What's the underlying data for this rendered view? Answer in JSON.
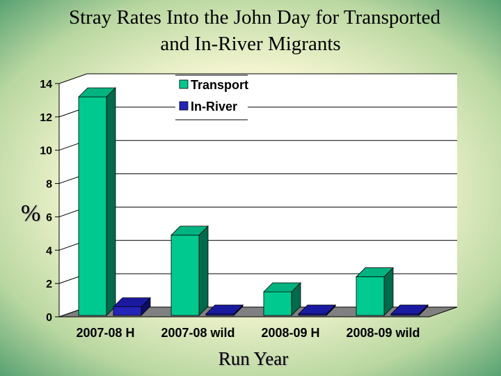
{
  "chart_data": {
    "type": "bar",
    "title_line1": "Stray Rates Into the John Day for Transported",
    "title_line2": "and In-River Migrants",
    "xlabel": "Run Year",
    "ylabel": "%",
    "categories": [
      "2007-08 H",
      "2007-08 wild",
      "2008-09 H",
      "2008-09 wild"
    ],
    "series": [
      {
        "name": "Transport",
        "values": [
          13.2,
          4.9,
          1.5,
          2.4
        ],
        "color": "#00c98f",
        "top": "#00b380",
        "side": "#006b4c"
      },
      {
        "name": "In-River",
        "values": [
          0.6,
          0.0,
          0.0,
          0.0
        ],
        "color": "#2424b8",
        "top": "#1a1aa0",
        "side": "#0d0d66"
      }
    ],
    "ylim": [
      0,
      14
    ],
    "yticks": [
      0,
      2,
      4,
      6,
      8,
      10,
      12,
      14
    ],
    "grid": true,
    "legend": "top-center",
    "wall_color": "#ffffff",
    "floor_color": "#808080"
  }
}
